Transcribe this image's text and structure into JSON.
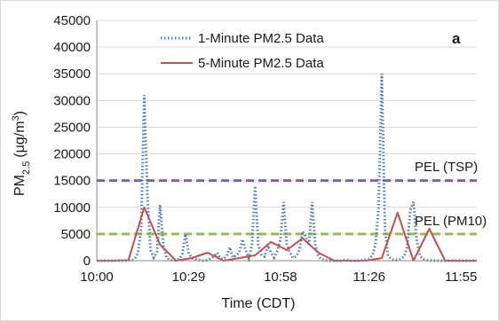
{
  "chart_data": {
    "type": "line",
    "panel_label": "a",
    "ylabel": {
      "base": "PM",
      "sub": "2.5",
      "unit_pre": "(μg/m",
      "unit_sup": "3",
      "unit_post": ")"
    },
    "xlabel": "Time (CDT)",
    "xlim_minutes": [
      0,
      120
    ],
    "ylim": [
      0,
      45000
    ],
    "y_ticks": [
      0,
      5000,
      10000,
      15000,
      20000,
      25000,
      30000,
      35000,
      40000,
      45000
    ],
    "x_ticks": [
      {
        "label": "10:00",
        "minute": 0
      },
      {
        "label": "10:29",
        "minute": 29
      },
      {
        "label": "10:58",
        "minute": 58
      },
      {
        "label": "11:26",
        "minute": 86
      },
      {
        "label": "11:55",
        "minute": 115
      }
    ],
    "grid": {
      "horizontal": true,
      "vertical": false
    },
    "legend_position": "top-center",
    "series": [
      {
        "name": "1-Minute PM2.5 Data",
        "color": "#4a7ebb",
        "style": "dotted",
        "x": [
          0,
          1,
          2,
          3,
          4,
          5,
          6,
          7,
          8,
          9,
          10,
          11,
          12,
          13,
          14,
          15,
          16,
          17,
          18,
          19,
          20,
          21,
          22,
          23,
          24,
          25,
          26,
          27,
          28,
          29,
          30,
          31,
          32,
          33,
          34,
          35,
          36,
          37,
          38,
          39,
          40,
          41,
          42,
          43,
          44,
          45,
          46,
          47,
          48,
          49,
          50,
          51,
          52,
          53,
          54,
          55,
          56,
          57,
          58,
          59,
          60,
          61,
          62,
          63,
          64,
          65,
          66,
          67,
          68,
          69,
          70,
          71,
          72,
          73,
          74,
          75,
          76,
          77,
          78,
          79,
          80,
          81,
          82,
          83,
          84,
          85,
          86,
          87,
          88,
          89,
          90,
          91,
          92,
          93,
          94,
          95,
          96,
          97,
          98,
          99,
          100,
          101,
          102,
          103,
          104,
          105,
          106,
          107,
          108,
          109,
          110,
          111,
          112,
          113,
          114,
          115,
          116,
          117,
          118,
          119,
          120
        ],
        "y": [
          0,
          0,
          0,
          0,
          0,
          0,
          0,
          0,
          0,
          0,
          50,
          100,
          300,
          1500,
          6000,
          31000,
          12000,
          2000,
          600,
          1500,
          10500,
          3000,
          500,
          200,
          0,
          100,
          300,
          1200,
          5000,
          1500,
          500,
          300,
          200,
          0,
          0,
          100,
          400,
          800,
          1500,
          500,
          300,
          900,
          2500,
          600,
          1000,
          1500,
          4000,
          2000,
          500,
          3000,
          14000,
          3000,
          1000,
          800,
          2800,
          1500,
          600,
          1800,
          4000,
          11000,
          3000,
          1500,
          500,
          800,
          2000,
          5500,
          4500,
          3000,
          11000,
          3000,
          800,
          300,
          100,
          0,
          0,
          0,
          0,
          0,
          100,
          200,
          0,
          0,
          0,
          0,
          100,
          200,
          300,
          1000,
          3000,
          10000,
          35000,
          6000,
          1000,
          300,
          100,
          100,
          300,
          800,
          2500,
          9500,
          11000,
          4000,
          1000,
          300,
          100,
          50,
          0,
          0,
          0,
          0,
          0,
          0,
          0,
          0,
          0,
          0,
          0,
          0,
          0,
          0,
          0
        ]
      },
      {
        "name": "5-Minute PM2.5 Data",
        "color": "#c0504d",
        "style": "solid",
        "x": [
          0,
          5,
          10,
          15,
          20,
          25,
          30,
          35,
          40,
          45,
          50,
          55,
          60,
          65,
          70,
          75,
          80,
          85,
          90,
          95,
          100,
          105,
          110,
          115,
          120
        ],
        "y": [
          0,
          0,
          100,
          10000,
          3000,
          0,
          500,
          1500,
          0,
          500,
          1000,
          3500,
          2000,
          4200,
          1500,
          0,
          0,
          0,
          500,
          9000,
          0,
          6000,
          0,
          0,
          0
        ]
      }
    ],
    "reference_lines": [
      {
        "label": "PEL (TSP)",
        "value": 15000,
        "color": "#8064a2"
      },
      {
        "label": "PEL (PM10)",
        "value": 5000,
        "color": "#9bbb59"
      }
    ]
  }
}
